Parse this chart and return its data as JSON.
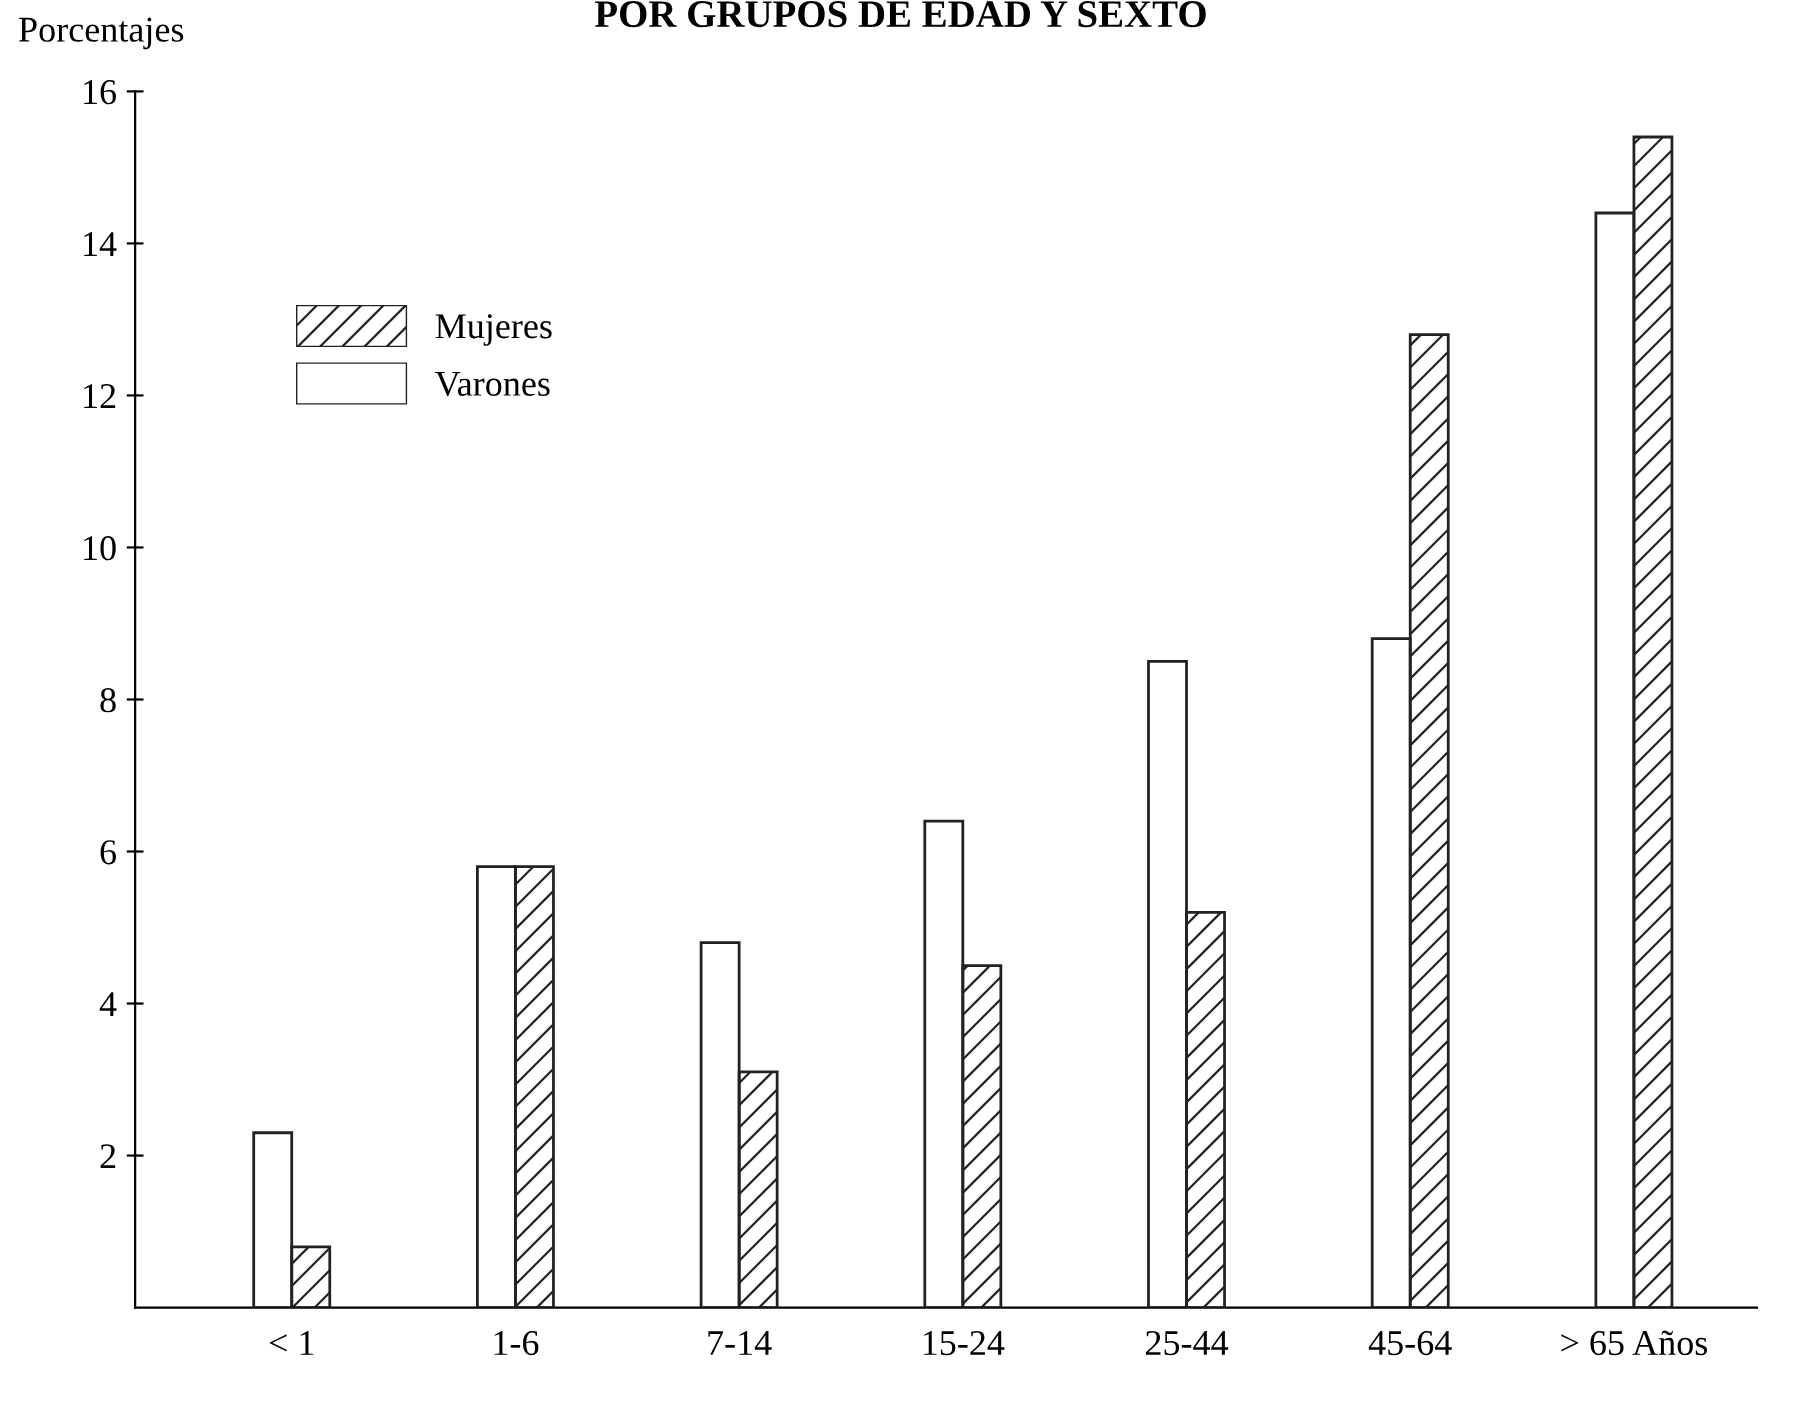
{
  "chart_data": {
    "type": "bar",
    "title": "POR GRUPOS DE EDAD Y SEXTO",
    "ylabel": "Porcentajes",
    "categories": [
      "< 1",
      "1-6",
      "7-14",
      "15-24",
      "25-44",
      "45-64",
      "> 65 Años"
    ],
    "series": [
      {
        "name": "Varones",
        "color": "#ffffff",
        "values": [
          2.3,
          5.8,
          4.8,
          6.4,
          8.5,
          8.8,
          14.4
        ]
      },
      {
        "name": "Mujeres",
        "color": "#222222",
        "values": [
          0.8,
          5.8,
          3.1,
          4.5,
          5.2,
          12.8,
          15.4
        ]
      }
    ],
    "ylim": [
      0,
      16
    ],
    "yticks": [
      2,
      4,
      6,
      8,
      10,
      12,
      14,
      16
    ],
    "grid": false,
    "legend": "top left"
  }
}
